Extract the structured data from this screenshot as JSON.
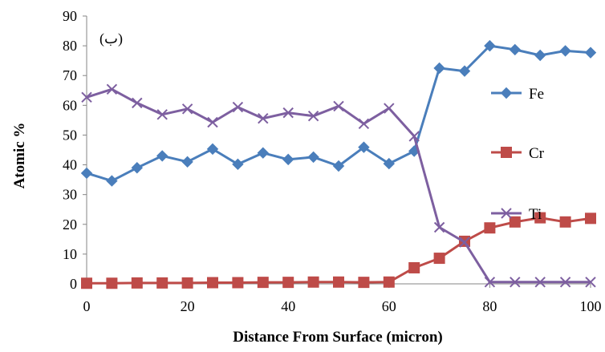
{
  "chart_data": {
    "type": "line",
    "title": "",
    "panel_label": "(ب)",
    "xlabel": "Distance From Surface (micron)",
    "ylabel": "Atomic %",
    "xlim": [
      0,
      100
    ],
    "ylim": [
      0,
      90
    ],
    "x_ticks": [
      0,
      20,
      40,
      60,
      80,
      100
    ],
    "y_ticks": [
      0,
      10,
      20,
      30,
      40,
      50,
      60,
      70,
      80,
      90
    ],
    "grid": false,
    "legend_position": "right",
    "x": [
      0,
      5,
      10,
      15,
      20,
      25,
      30,
      35,
      40,
      45,
      50,
      55,
      60,
      65,
      70,
      75,
      80,
      85,
      90,
      95,
      100
    ],
    "series": [
      {
        "name": "Fe",
        "color": "#4a7ebb",
        "marker": "diamond",
        "values": [
          37.2,
          34.6,
          39,
          43,
          41,
          45.3,
          40.2,
          44,
          41.8,
          42.6,
          39.6,
          45.9,
          40.4,
          44.6,
          72.5,
          71.5,
          80,
          78.7,
          76.8,
          78.3,
          77.7
        ]
      },
      {
        "name": "Cr",
        "color": "#be4b48",
        "marker": "square",
        "values": [
          0.2,
          0.2,
          0.3,
          0.3,
          0.3,
          0.4,
          0.4,
          0.5,
          0.5,
          0.6,
          0.6,
          0.5,
          0.6,
          5.4,
          8.6,
          14.3,
          18.8,
          20.8,
          22.2,
          20.8,
          22
        ]
      },
      {
        "name": "Ti",
        "color": "#7d5fa0",
        "marker": "x",
        "values": [
          62.7,
          65.4,
          60.8,
          56.9,
          58.8,
          54.3,
          59.4,
          55.6,
          57.5,
          56.4,
          59.7,
          53.8,
          59,
          49.6,
          19,
          14,
          0.6,
          0.6,
          0.6,
          0.6,
          0.6
        ]
      }
    ]
  }
}
